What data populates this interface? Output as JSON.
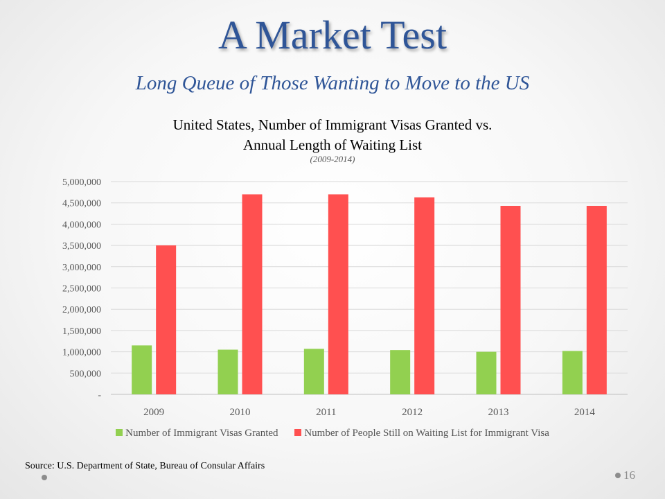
{
  "slide": {
    "title": "A Market Test",
    "subtitle": "Long Queue of Those Wanting to Move to the US",
    "source": "Source: U.S. Department of State, Bureau of Consular Affairs",
    "page_number": "16"
  },
  "colors": {
    "title": "#2f5597",
    "series_granted": "#92d050",
    "series_waiting": "#ff5050",
    "grid": "#d9d9d9"
  },
  "chart_data": {
    "type": "bar",
    "title_line1": "United States, Number of Immigrant Visas Granted vs.",
    "title_line2": "Annual Length of Waiting List",
    "subtitle": "(2009-2014)",
    "categories": [
      "2009",
      "2010",
      "2011",
      "2012",
      "2013",
      "2014"
    ],
    "series": [
      {
        "name": "Number of Immigrant Visas Granted",
        "color": "#92d050",
        "values": [
          1150000,
          1050000,
          1070000,
          1040000,
          1000000,
          1020000
        ]
      },
      {
        "name": "Number of People Still on Waiting List for Immigrant Visa",
        "color": "#ff5050",
        "values": [
          3500000,
          4700000,
          4700000,
          4630000,
          4430000,
          4430000
        ]
      }
    ],
    "ylim": [
      0,
      5000000
    ],
    "yticks": [
      0,
      500000,
      1000000,
      1500000,
      2000000,
      2500000,
      3000000,
      3500000,
      4000000,
      4500000,
      5000000
    ],
    "ytick_labels": [
      "-",
      "500,000",
      "1,000,000",
      "1,500,000",
      "2,000,000",
      "2,500,000",
      "3,000,000",
      "3,500,000",
      "4,000,000",
      "4,500,000",
      "5,000,000"
    ],
    "grid": true,
    "legend_position": "bottom"
  }
}
